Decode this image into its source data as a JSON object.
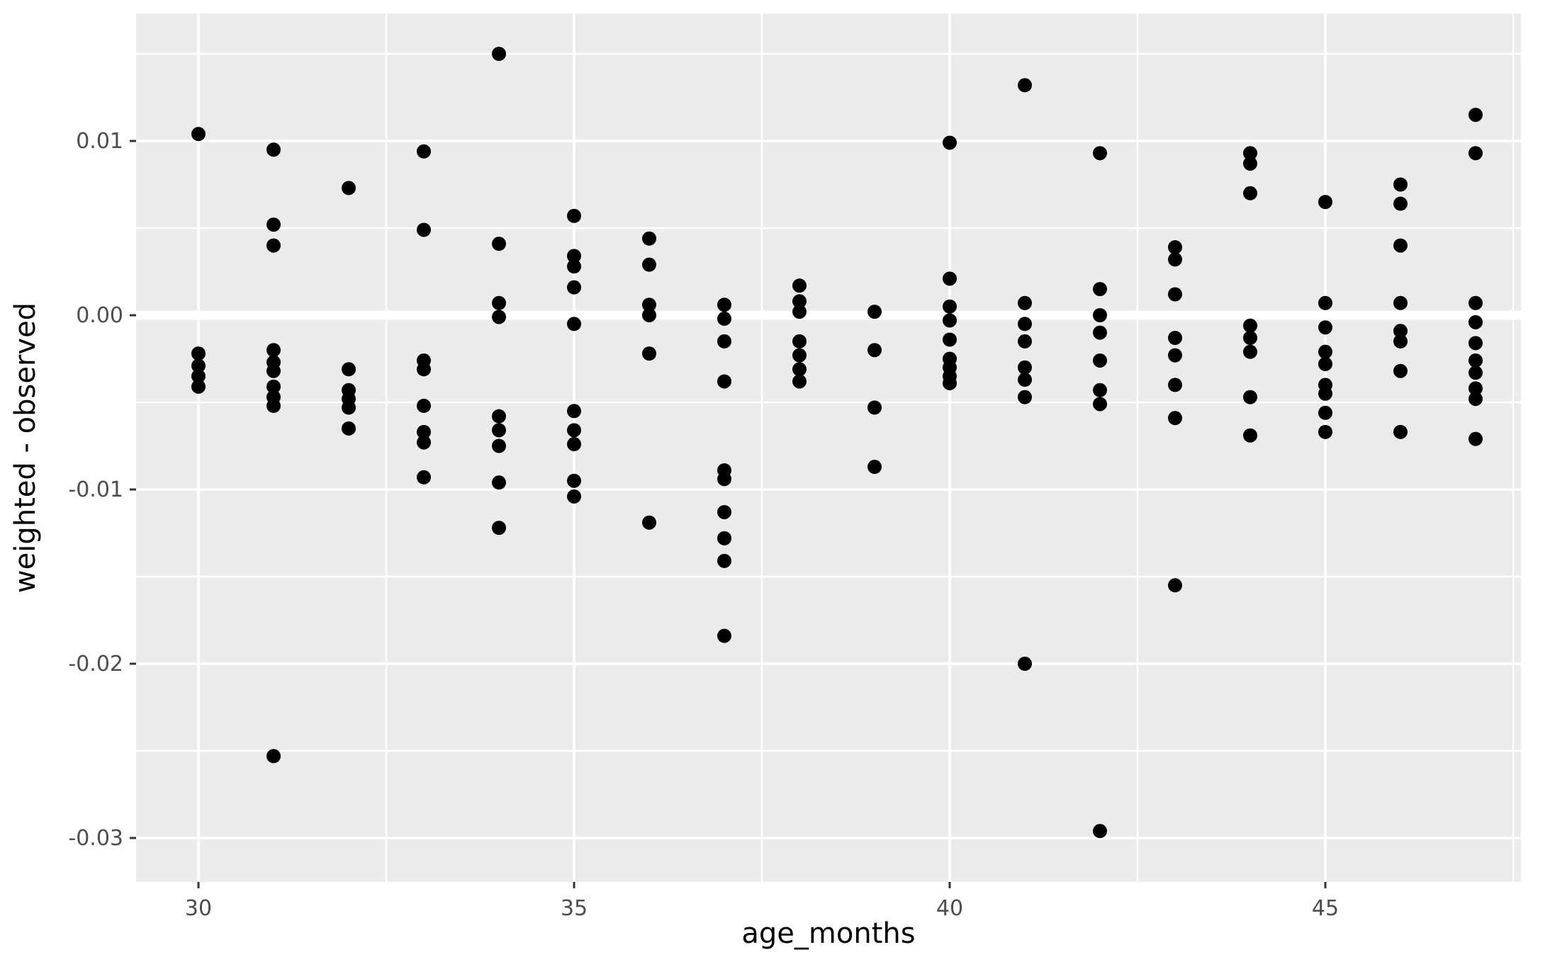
{
  "chart_data": {
    "type": "scatter",
    "title": "",
    "xlabel": "age_months",
    "ylabel": "weighted - observed",
    "xlim": [
      29.17,
      48.39
    ],
    "ylim": [
      -0.0173,
      0.0323
    ],
    "x_major_ticks": [
      {
        "value": 30,
        "label": "30"
      },
      {
        "value": 35,
        "label": "35"
      },
      {
        "value": 40,
        "label": "40"
      },
      {
        "value": 45,
        "label": "45"
      }
    ],
    "x_minor_ticks": [
      32.5,
      37.5,
      42.5,
      47.5
    ],
    "y_major_ticks": [
      {
        "value": 0.01,
        "label": "0.01"
      },
      {
        "value": 0.0,
        "label": "0.00"
      },
      {
        "value": -0.01,
        "label": "-0.01"
      },
      {
        "value": -0.02,
        "label": "-0.02"
      },
      {
        "value": -0.03,
        "label": "-0.03"
      }
    ],
    "y_minor_ticks": [
      0.015,
      0.005,
      -0.005,
      -0.015,
      -0.025
    ],
    "zero_reference_line": 0.0,
    "grid": "on",
    "legend": "none",
    "columns": [
      {
        "x": 30,
        "values": [
          0.0104,
          -0.0022,
          -0.0029,
          -0.0035,
          -0.0041
        ]
      },
      {
        "x": 31,
        "values": [
          0.0095,
          0.0052,
          0.004,
          -0.002,
          -0.0027,
          -0.0032,
          -0.0041,
          -0.0047,
          -0.0052,
          -0.0253
        ]
      },
      {
        "x": 32,
        "values": [
          0.0073,
          -0.0031,
          -0.0043,
          -0.0048,
          -0.0053,
          -0.0065
        ]
      },
      {
        "x": 33,
        "values": [
          0.0094,
          0.0049,
          -0.0026,
          -0.0031,
          -0.0052,
          -0.0067,
          -0.0073,
          -0.0093
        ]
      },
      {
        "x": 34,
        "values": [
          0.015,
          0.0041,
          0.0007,
          -0.0001,
          -0.0058,
          -0.0066,
          -0.0075,
          -0.0096,
          -0.0122
        ]
      },
      {
        "x": 35,
        "values": [
          0.0057,
          0.0034,
          0.0028,
          0.0016,
          -0.0005,
          -0.0055,
          -0.0066,
          -0.0074,
          -0.0095,
          -0.0104
        ]
      },
      {
        "x": 36,
        "values": [
          0.0044,
          0.0029,
          0.0006,
          0.0,
          -0.0022,
          -0.0119
        ]
      },
      {
        "x": 37,
        "values": [
          0.0006,
          -0.0002,
          -0.0015,
          -0.0038,
          -0.0089,
          -0.0094,
          -0.0113,
          -0.0128,
          -0.0141,
          -0.0184
        ]
      },
      {
        "x": 38,
        "values": [
          0.0017,
          0.0008,
          0.0002,
          -0.0015,
          -0.0023,
          -0.0031,
          -0.0038
        ]
      },
      {
        "x": 39,
        "values": [
          0.0002,
          -0.002,
          -0.0053,
          -0.0087
        ]
      },
      {
        "x": 40,
        "values": [
          0.0099,
          0.0021,
          0.0005,
          -0.0003,
          -0.0014,
          -0.0025,
          -0.003,
          -0.0035,
          -0.0039
        ]
      },
      {
        "x": 41,
        "values": [
          0.0132,
          0.0007,
          -0.0005,
          -0.0015,
          -0.003,
          -0.0037,
          -0.0047,
          -0.02
        ]
      },
      {
        "x": 42,
        "values": [
          0.0093,
          0.0015,
          0.0,
          -0.001,
          -0.0026,
          -0.0043,
          -0.0051,
          -0.0296
        ]
      },
      {
        "x": 43,
        "values": [
          0.0039,
          0.0032,
          0.0012,
          -0.0013,
          -0.0023,
          -0.004,
          -0.0059,
          -0.0155
        ]
      },
      {
        "x": 44,
        "values": [
          0.0093,
          0.0087,
          0.007,
          -0.0006,
          -0.0013,
          -0.0021,
          -0.0047,
          -0.0069
        ]
      },
      {
        "x": 45,
        "values": [
          0.0065,
          0.0007,
          -0.0007,
          -0.0021,
          -0.0028,
          -0.004,
          -0.0045,
          -0.0056,
          -0.0067
        ]
      },
      {
        "x": 46,
        "values": [
          0.0075,
          0.0064,
          0.004,
          0.0007,
          -0.0009,
          -0.0015,
          -0.0032,
          -0.0067
        ]
      },
      {
        "x": 47,
        "values": [
          0.0115,
          0.0093,
          0.0007,
          -0.0004,
          -0.0016,
          -0.0026,
          -0.0033,
          -0.0042,
          -0.0048,
          -0.0071
        ]
      }
    ],
    "colors": {
      "panel_background": "#EBEBEB",
      "figure_background": "#FFFFFF",
      "gridline": "#FFFFFF",
      "point": "#000000",
      "tick_mark": "#333333",
      "tick_label": "#4D4D4D",
      "axis_title": "#000000"
    }
  }
}
